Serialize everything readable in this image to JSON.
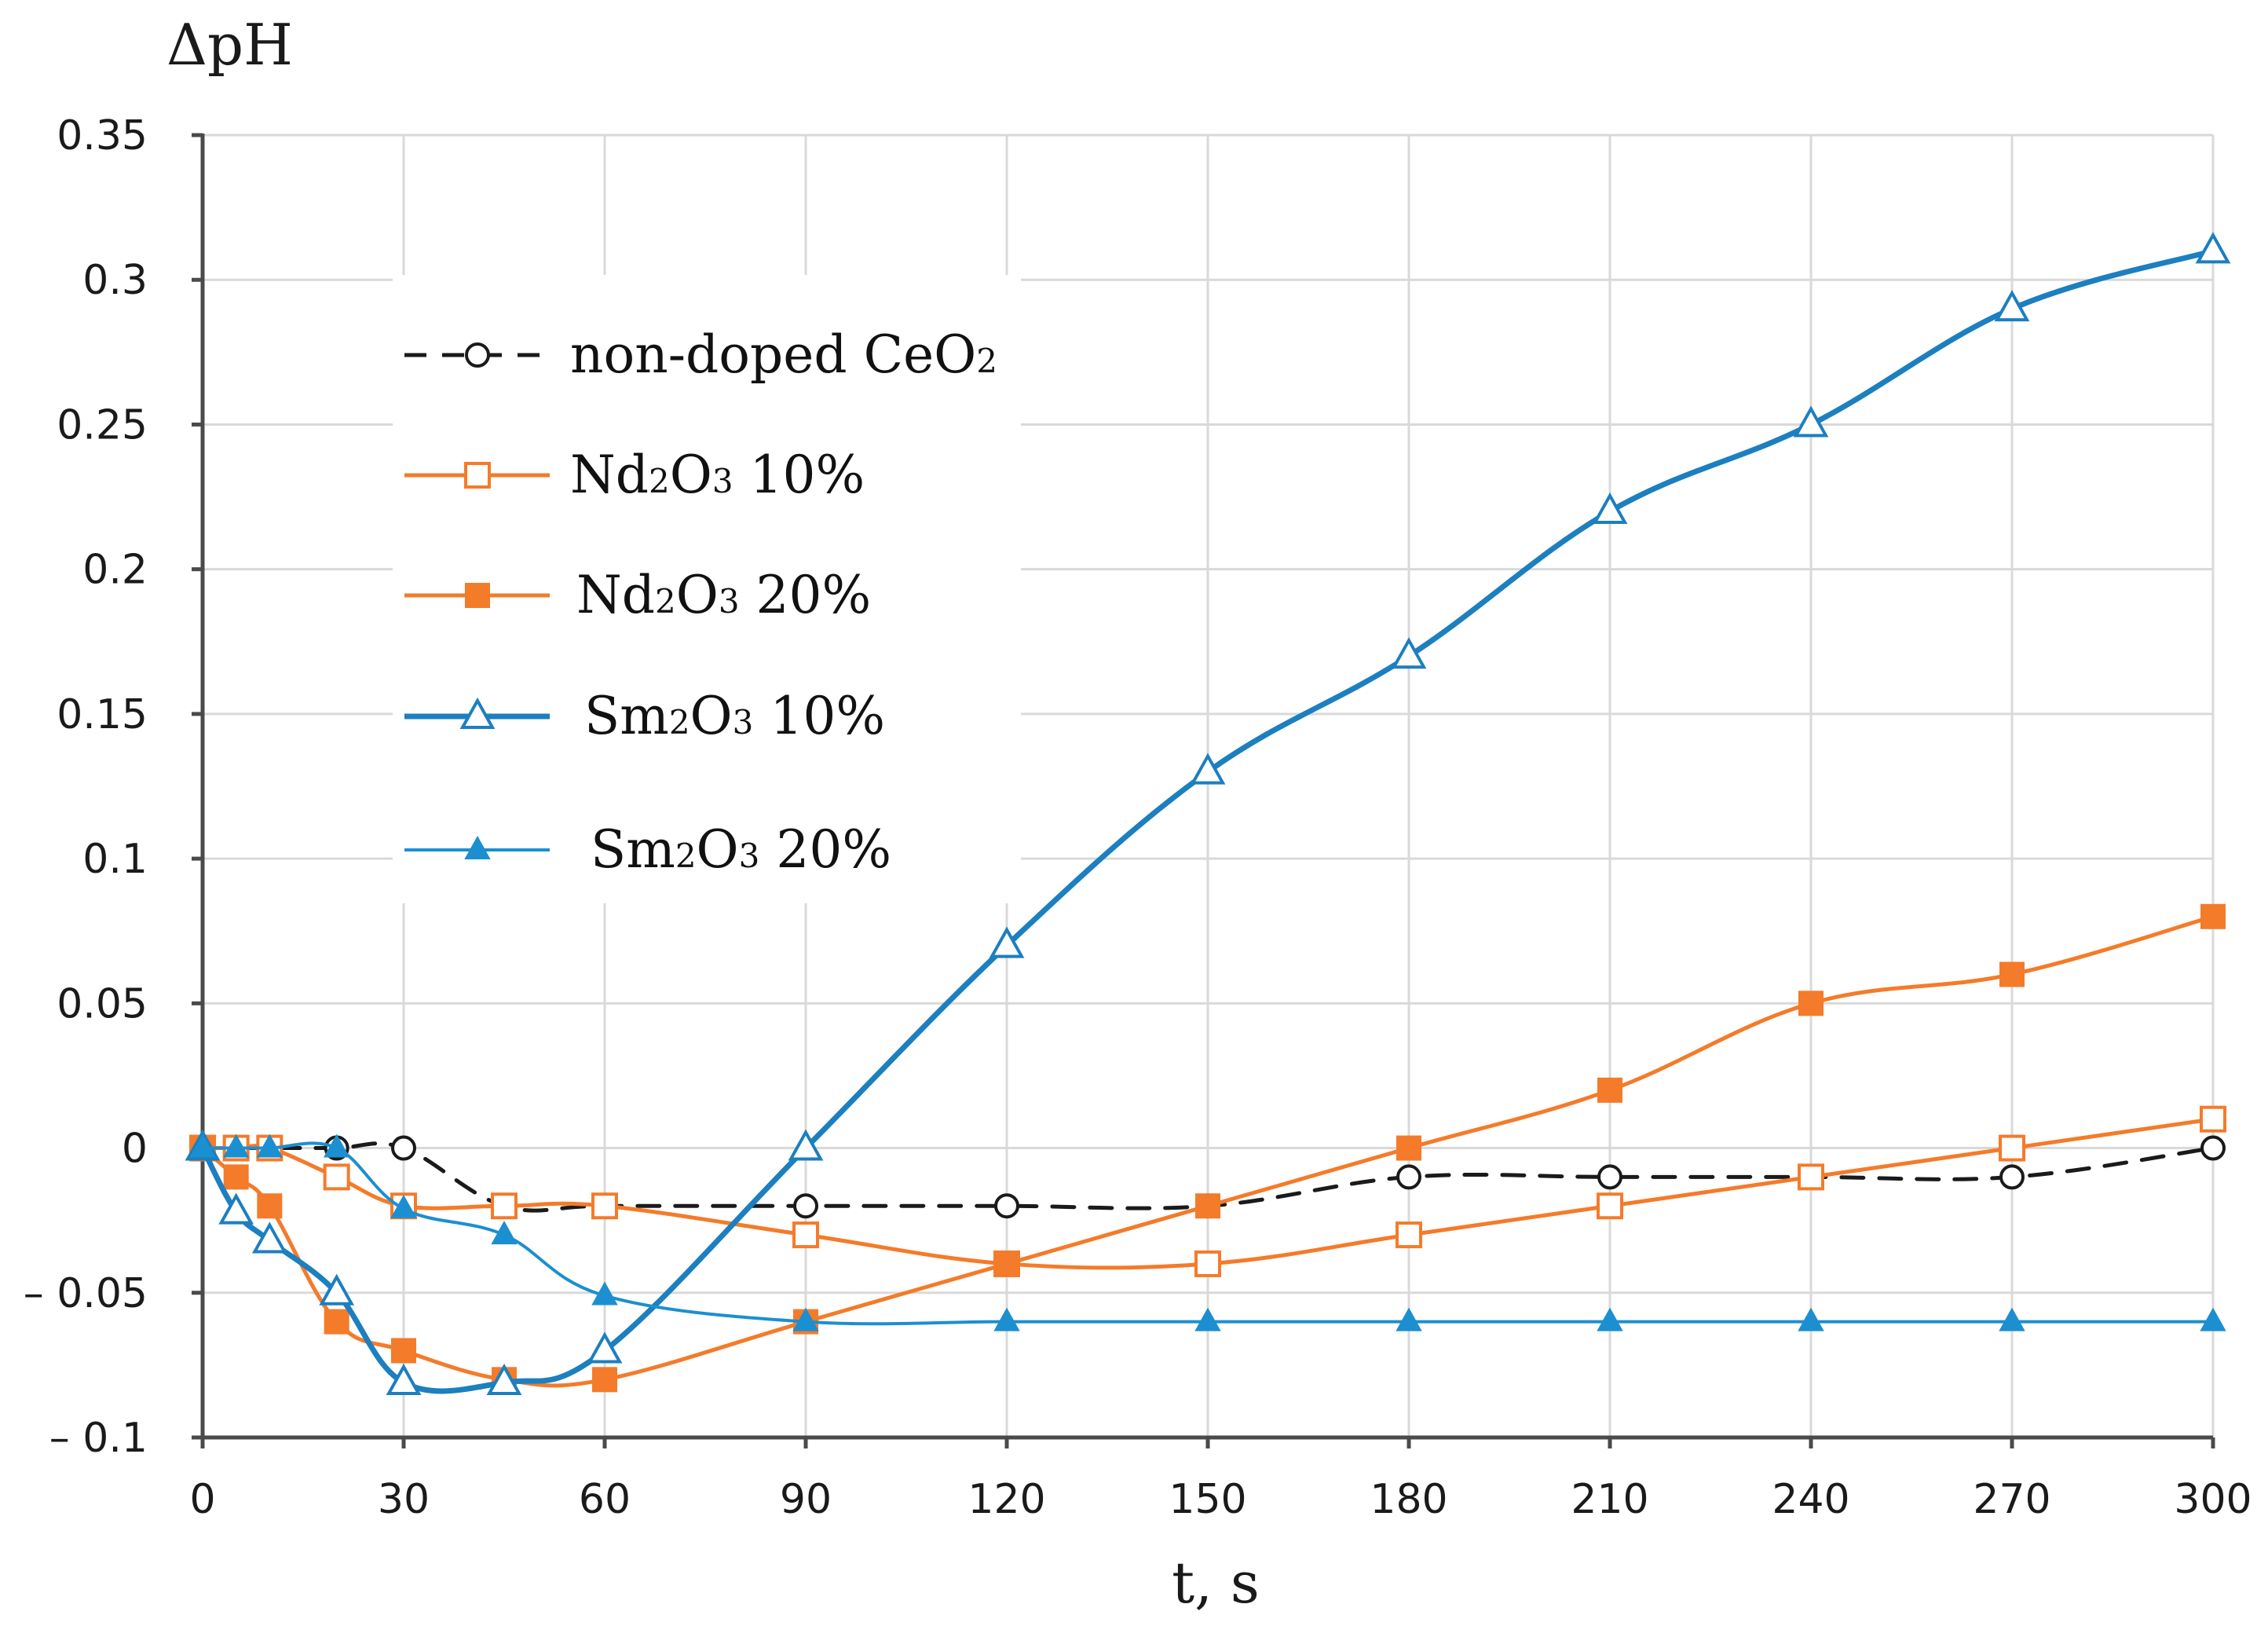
{
  "chart_data": {
    "type": "line",
    "title": "",
    "xlabel": "t, s",
    "ylabel": "ΔpH",
    "xlim": [
      0,
      300
    ],
    "ylim": [
      -0.1,
      0.35
    ],
    "x_ticks": [
      0,
      30,
      60,
      90,
      120,
      150,
      180,
      210,
      240,
      270,
      300
    ],
    "x_tick_labels": [
      "0",
      "30",
      "60",
      "90",
      "120",
      "150",
      "180",
      "210",
      "240",
      "270",
      "300"
    ],
    "y_ticks": [
      0.35,
      0.3,
      0.25,
      0.2,
      0.15,
      0.1,
      0.05,
      0,
      -0.05,
      -0.1
    ],
    "y_tick_labels": [
      "0.35",
      "0.3",
      "0.25",
      "0.2",
      "0.15",
      "0.1",
      "0.05",
      "0",
      "– 0.05",
      "– 0.1"
    ],
    "grid": true,
    "legend_position": "top-left",
    "series": [
      {
        "name": "non-doped CeO2",
        "legend_main": "non-doped CeO",
        "legend_sub": "2",
        "legend_pct": "",
        "color": "#1a1a1a",
        "dashed": true,
        "marker": "circle-open",
        "x": [
          0,
          5,
          10,
          20,
          30,
          45,
          60,
          90,
          120,
          150,
          180,
          210,
          240,
          270,
          300
        ],
        "y": [
          0,
          0,
          0,
          0,
          0,
          -0.02,
          -0.02,
          -0.02,
          -0.02,
          -0.02,
          -0.01,
          -0.01,
          -0.01,
          -0.01,
          0
        ]
      },
      {
        "name": "Nd2O3 10%",
        "legend_main": "Nd",
        "legend_sub": "2",
        "legend_main2": "O",
        "legend_sub2": "3",
        "legend_pct": "10%",
        "color": "#f47b2a",
        "dashed": false,
        "marker": "square-open",
        "x": [
          0,
          5,
          10,
          20,
          30,
          45,
          60,
          90,
          120,
          150,
          180,
          210,
          240,
          270,
          300
        ],
        "y": [
          0,
          0,
          0,
          -0.01,
          -0.02,
          -0.02,
          -0.02,
          -0.03,
          -0.04,
          -0.04,
          -0.03,
          -0.02,
          -0.01,
          0,
          0.01
        ]
      },
      {
        "name": "Nd2O3 20%",
        "legend_main": "Nd",
        "legend_sub": "2",
        "legend_main2": "O",
        "legend_sub2": "3",
        "legend_pct": "20%",
        "color": "#f47b2a",
        "dashed": false,
        "marker": "square-filled",
        "x": [
          0,
          5,
          10,
          20,
          30,
          45,
          60,
          90,
          120,
          150,
          180,
          210,
          240,
          270,
          300
        ],
        "y": [
          0,
          -0.01,
          -0.02,
          -0.06,
          -0.07,
          -0.08,
          -0.08,
          -0.06,
          -0.04,
          -0.02,
          0,
          0.02,
          0.05,
          0.06,
          0.08
        ]
      },
      {
        "name": "Sm2O3 10%",
        "legend_main": "Sm",
        "legend_sub": "2",
        "legend_main2": "O",
        "legend_sub2": "3",
        "legend_pct": "10%",
        "color": "#1c7fc0",
        "dashed": false,
        "width": 7,
        "marker": "triangle-open",
        "x": [
          0,
          5,
          10,
          20,
          30,
          45,
          60,
          90,
          120,
          150,
          180,
          210,
          240,
          270,
          300
        ],
        "y": [
          0,
          -0.022,
          -0.032,
          -0.05,
          -0.081,
          -0.081,
          -0.07,
          0,
          0.07,
          0.13,
          0.17,
          0.22,
          0.25,
          0.29,
          0.31
        ]
      },
      {
        "name": "Sm2O3 20%",
        "legend_main": "Sm",
        "legend_sub": "2",
        "legend_main2": "O",
        "legend_sub2": "3",
        "legend_pct": "20%",
        "color": "#1c8fd0",
        "dashed": false,
        "width": 4,
        "marker": "triangle-filled",
        "x": [
          0,
          5,
          10,
          20,
          30,
          45,
          60,
          90,
          120,
          150,
          180,
          210,
          240,
          270,
          300
        ],
        "y": [
          0,
          0,
          0,
          0,
          -0.021,
          -0.03,
          -0.051,
          -0.06,
          -0.06,
          -0.06,
          -0.06,
          -0.06,
          -0.06,
          -0.06,
          -0.06
        ]
      }
    ]
  }
}
